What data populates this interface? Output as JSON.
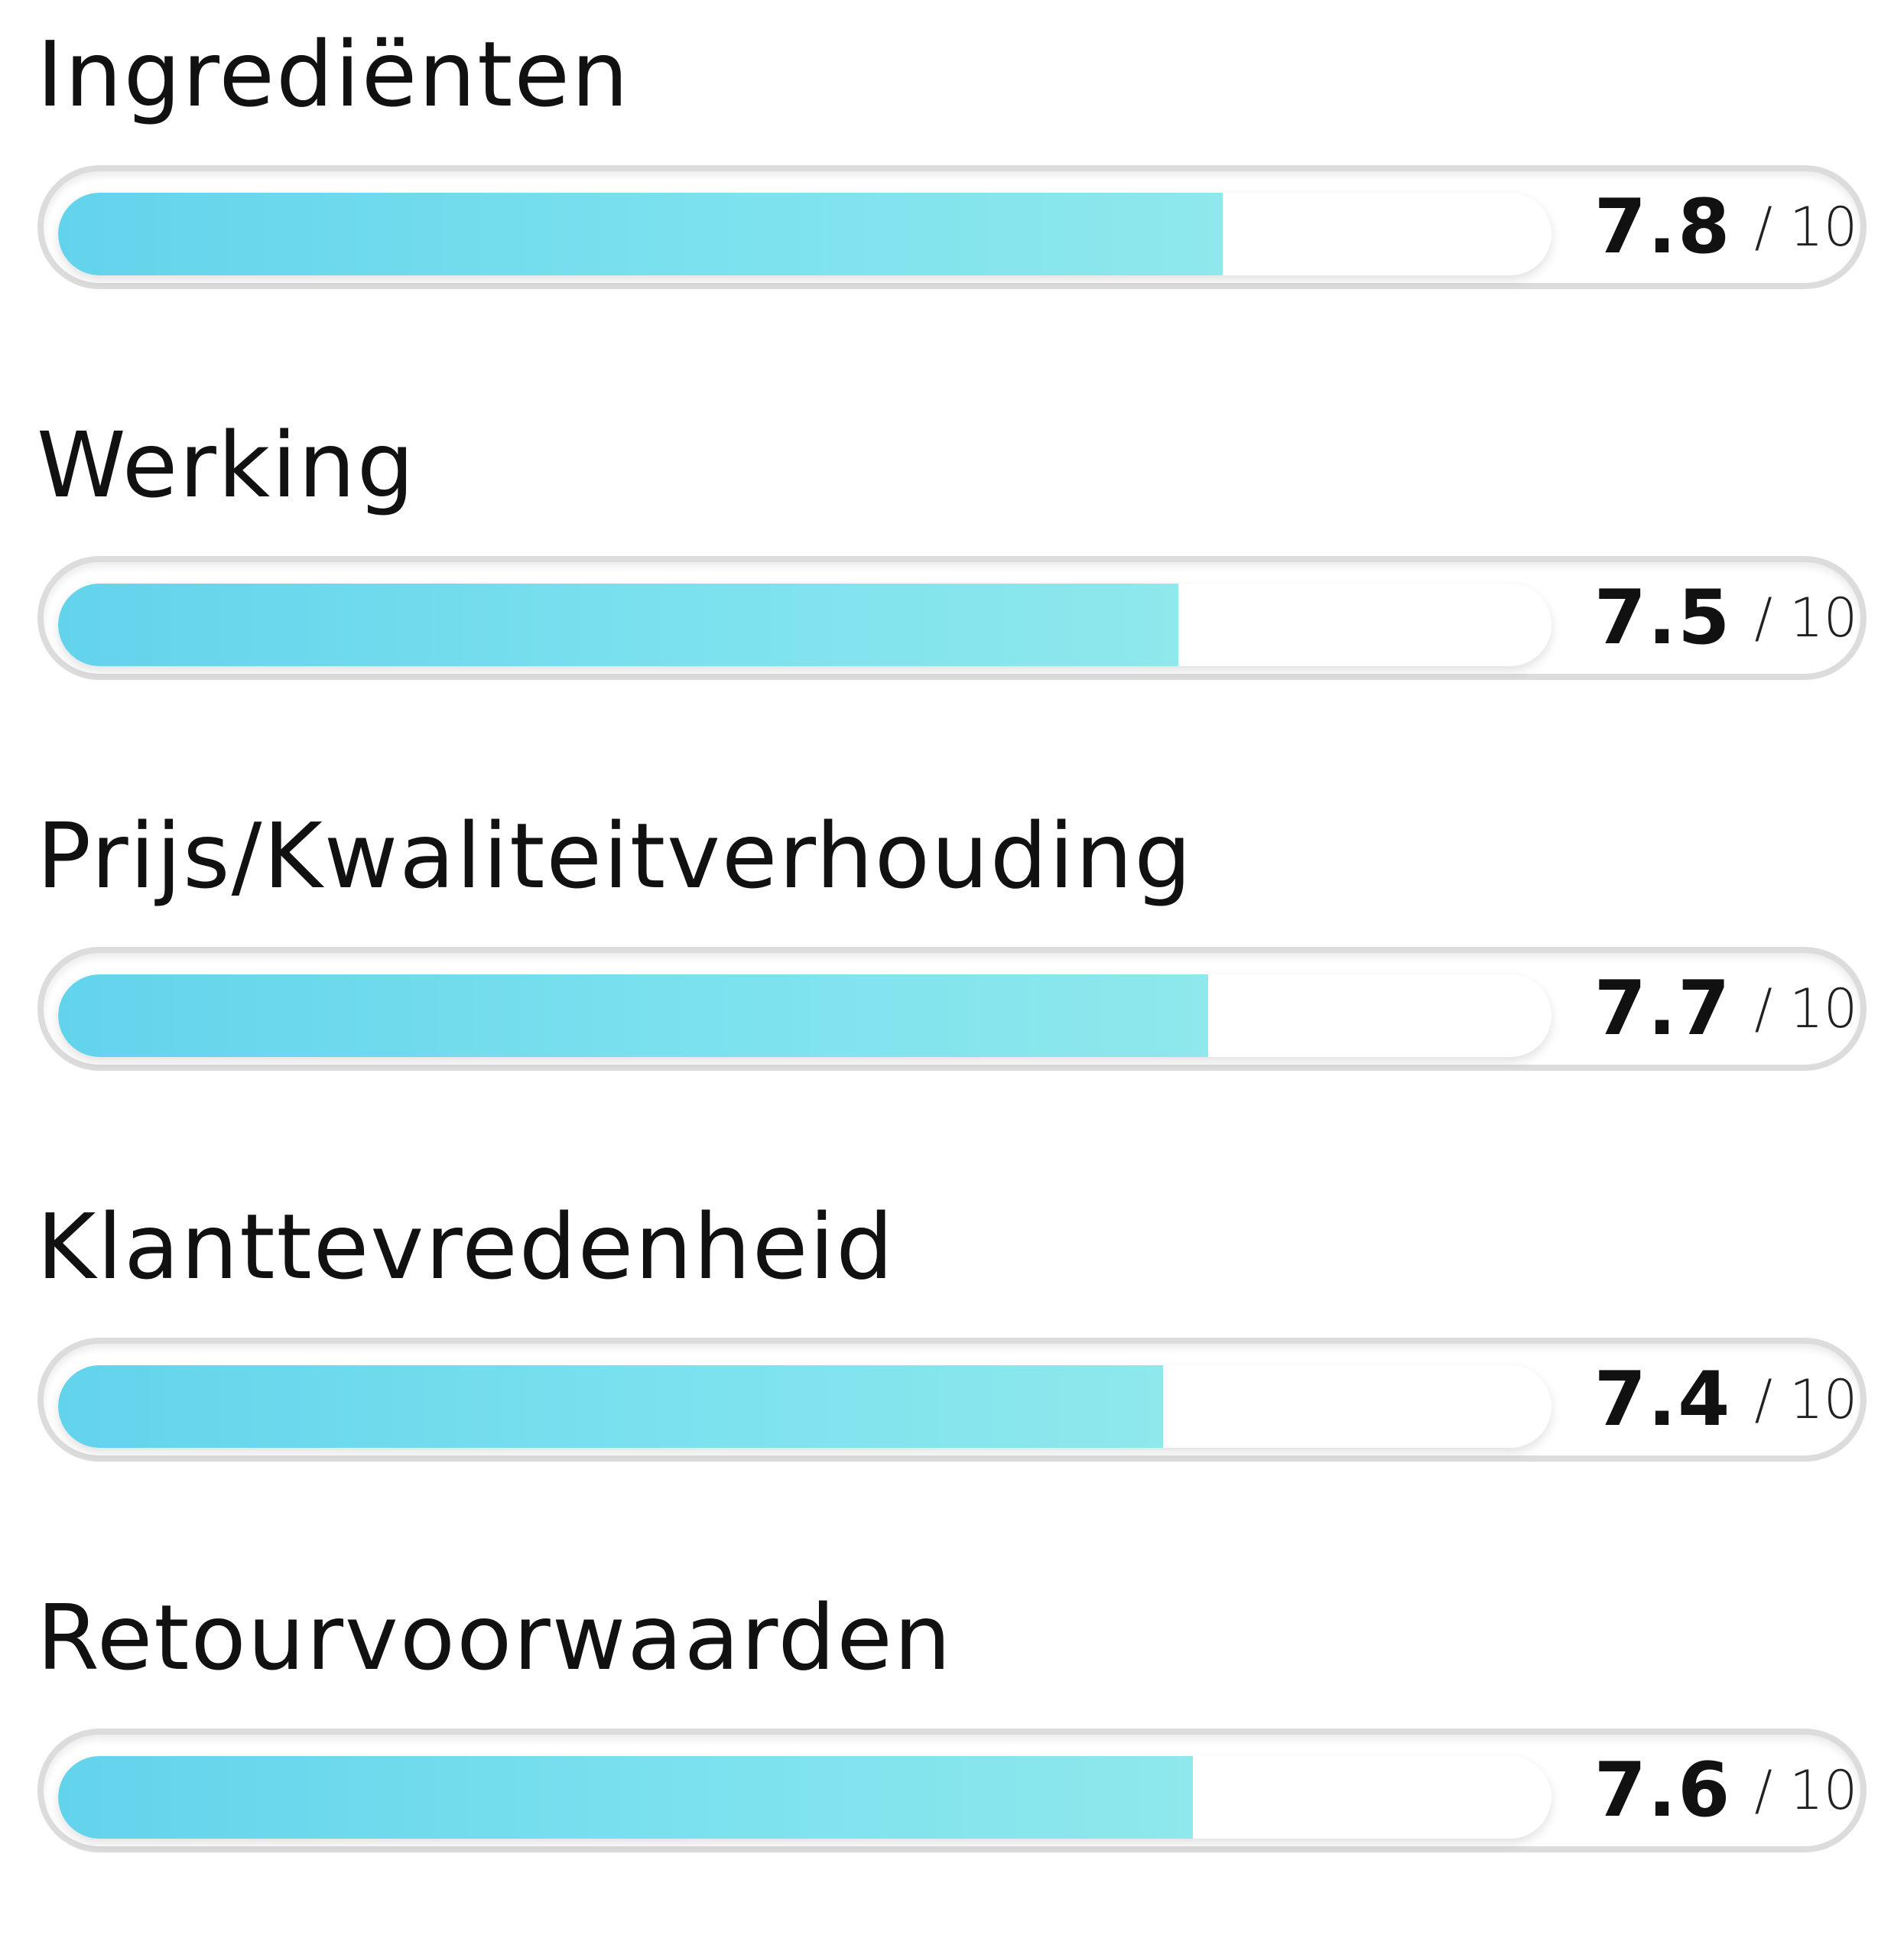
{
  "ratings": [
    {
      "label": "Ingrediënten",
      "value": "7.8",
      "max": "/ 10",
      "fraction": 0.78
    },
    {
      "label": "Werking",
      "value": "7.5",
      "max": "/ 10",
      "fraction": 0.75
    },
    {
      "label": "Prijs/Kwaliteitverhouding",
      "value": "7.7",
      "max": "/ 10",
      "fraction": 0.77
    },
    {
      "label": "Klanttevredenheid",
      "value": "7.4",
      "max": "/ 10",
      "fraction": 0.74
    },
    {
      "label": "Retourvoorwaarden",
      "value": "7.6",
      "max": "/ 10",
      "fraction": 0.76
    }
  ],
  "colors": {
    "fill_start": "#63d3ec",
    "fill_end": "#8ee8ec",
    "track_border": "#dcdcdc"
  }
}
